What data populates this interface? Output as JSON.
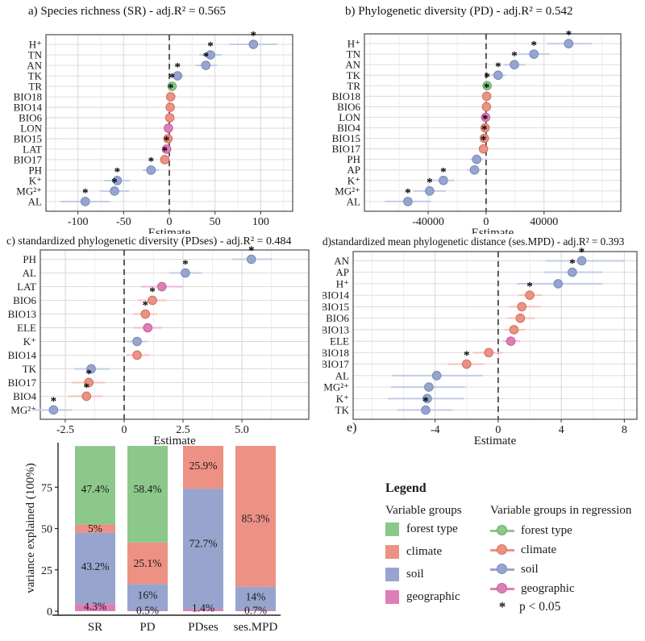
{
  "figure": {
    "panel_e_label": "e)"
  },
  "colors": {
    "forest_type": "#8cc88b",
    "climate": "#ec9184",
    "soil": "#97a5ce",
    "geographic": "#dd7eb7",
    "forest_type_light": "#bcdfbb",
    "climate_light": "#f5c3ba",
    "soil_light": "#c2cce5",
    "geographic_light": "#efb7d8",
    "forest_type_dark": "#66a968",
    "climate_dark": "#d0705f",
    "soil_dark": "#7589ba",
    "geographic_dark": "#c05f9c",
    "grid": "#d7d7d7",
    "grid_minor": "#ebebeb",
    "border": "#4a4a4a",
    "zero_line": "#333333",
    "text": "#1a1a1a"
  },
  "chart_data": [
    {
      "type": "scatter",
      "id": "a",
      "subtype": "forest-plot",
      "title": "a)  Species richness (SR) -  adj.R² = 0.565",
      "xlabel": "Estimate",
      "xlim": [
        -135,
        135
      ],
      "xticks": [
        {
          "v": -100,
          "t": "-100"
        },
        {
          "v": -50,
          "t": "-50"
        },
        {
          "v": 0,
          "t": "0"
        },
        {
          "v": 50,
          "t": "50"
        },
        {
          "v": 100,
          "t": "100"
        }
      ],
      "xminor": [
        -125,
        -75,
        -25,
        25,
        75,
        125
      ],
      "rows": [
        {
          "label": "H⁺",
          "group": "soil",
          "estimate": 92,
          "ci": [
            66,
            118
          ],
          "significant": true
        },
        {
          "label": "TN",
          "group": "soil",
          "estimate": 45,
          "ci": [
            33,
            57
          ],
          "significant": true
        },
        {
          "label": "AN",
          "group": "soil",
          "estimate": 40,
          "ci": [
            29,
            52
          ],
          "significant": true
        },
        {
          "label": "TK",
          "group": "soil",
          "estimate": 9,
          "ci": [
            3,
            15
          ],
          "significant": true
        },
        {
          "label": "TR",
          "group": "forest_type",
          "estimate": 3,
          "ci": [
            0,
            6
          ],
          "significant": true
        },
        {
          "label": "BIO18",
          "group": "climate",
          "estimate": 1.5,
          "ci": [
            -1,
            4
          ],
          "significant": true
        },
        {
          "label": "BIO14",
          "group": "climate",
          "estimate": 1,
          "ci": [
            -2,
            4
          ],
          "significant": false
        },
        {
          "label": "BIO6",
          "group": "climate",
          "estimate": 0.5,
          "ci": [
            -2.5,
            3.5
          ],
          "significant": false
        },
        {
          "label": "LON",
          "group": "geographic",
          "estimate": -1,
          "ci": [
            -4,
            2
          ],
          "significant": false
        },
        {
          "label": "BIO15",
          "group": "climate",
          "estimate": -1.5,
          "ci": [
            -4.5,
            1.5
          ],
          "significant": false
        },
        {
          "label": "LAT",
          "group": "geographic",
          "estimate": -3,
          "ci": [
            -6,
            0
          ],
          "significant": true
        },
        {
          "label": "BIO17",
          "group": "climate",
          "estimate": -5,
          "ci": [
            -9,
            -1
          ],
          "significant": true
        },
        {
          "label": "PH",
          "group": "soil",
          "estimate": -20,
          "ci": [
            -29,
            -11
          ],
          "significant": true
        },
        {
          "label": "K⁺",
          "group": "soil",
          "estimate": -57,
          "ci": [
            -71,
            -43
          ],
          "significant": true
        },
        {
          "label": "MG²⁺",
          "group": "soil",
          "estimate": -60,
          "ci": [
            -76,
            -44
          ],
          "significant": true
        },
        {
          "label": "AL",
          "group": "soil",
          "estimate": -92,
          "ci": [
            -119,
            -65
          ],
          "significant": true
        }
      ]
    },
    {
      "type": "scatter",
      "id": "b",
      "subtype": "forest-plot",
      "title": "b) Phylogenetic diversity (PD) -  adj.R² = 0.542",
      "xlabel": "Estimate",
      "xlim": [
        -84000,
        93000
      ],
      "xticks": [
        {
          "v": -40000,
          "t": "-40000"
        },
        {
          "v": 0,
          "t": "0"
        },
        {
          "v": 40000,
          "t": "40000"
        }
      ],
      "xminor": [
        -80000,
        -60000,
        -20000,
        20000,
        60000,
        80000
      ],
      "rows": [
        {
          "label": "H⁺",
          "group": "soil",
          "estimate": 57000,
          "ci": [
            42000,
            73000
          ],
          "significant": true
        },
        {
          "label": "TN",
          "group": "soil",
          "estimate": 33000,
          "ci": [
            22000,
            44000
          ],
          "significant": true
        },
        {
          "label": "AN",
          "group": "soil",
          "estimate": 19500,
          "ci": [
            12000,
            27000
          ],
          "significant": true
        },
        {
          "label": "TK",
          "group": "soil",
          "estimate": 8300,
          "ci": [
            3300,
            13300
          ],
          "significant": true
        },
        {
          "label": "TR",
          "group": "forest_type",
          "estimate": 700,
          "ci": [
            -400,
            1800
          ],
          "significant": true
        },
        {
          "label": "BIO18",
          "group": "climate",
          "estimate": 400,
          "ci": [
            -700,
            1500
          ],
          "significant": true
        },
        {
          "label": "BIO6",
          "group": "climate",
          "estimate": 250,
          "ci": [
            -900,
            1400
          ],
          "significant": false
        },
        {
          "label": "LON",
          "group": "geographic",
          "estimate": -300,
          "ci": [
            -1400,
            800
          ],
          "significant": false
        },
        {
          "label": "BIO4",
          "group": "climate",
          "estimate": -700,
          "ci": [
            -1800,
            400
          ],
          "significant": true
        },
        {
          "label": "BIO15",
          "group": "climate",
          "estimate": -1200,
          "ci": [
            -2400,
            0
          ],
          "significant": true
        },
        {
          "label": "BIO17",
          "group": "climate",
          "estimate": -1800,
          "ci": [
            -3100,
            -500
          ],
          "significant": true
        },
        {
          "label": "PH",
          "group": "soil",
          "estimate": -6500,
          "ci": [
            -11000,
            -2000
          ],
          "significant": false
        },
        {
          "label": "AP",
          "group": "soil",
          "estimate": -8000,
          "ci": [
            -13000,
            -3000
          ],
          "significant": false
        },
        {
          "label": "K⁺",
          "group": "soil",
          "estimate": -29500,
          "ci": [
            -37000,
            -22000
          ],
          "significant": true
        },
        {
          "label": "MG²⁺",
          "group": "soil",
          "estimate": -39000,
          "ci": [
            -50000,
            -28000
          ],
          "significant": true
        },
        {
          "label": "AL",
          "group": "soil",
          "estimate": -54000,
          "ci": [
            -70000,
            -38000
          ],
          "significant": true
        }
      ]
    },
    {
      "type": "scatter",
      "id": "c",
      "subtype": "forest-plot",
      "title": "c) standardized phylogenetic diversity (PDses) -  adj.R² = 0.484",
      "xlabel": "Estimate",
      "xlim": [
        -3.56,
        7.84
      ],
      "xticks": [
        {
          "v": -2.5,
          "t": "-2.5"
        },
        {
          "v": 0,
          "t": "0"
        },
        {
          "v": 2.5,
          "t": "2.5"
        },
        {
          "v": 5,
          "t": "5.0"
        }
      ],
      "xminor": [
        -1.25,
        1.25,
        3.75,
        6.25
      ],
      "rows": [
        {
          "label": "PH",
          "group": "soil",
          "estimate": 5.4,
          "ci": [
            4.6,
            6.3
          ],
          "significant": true
        },
        {
          "label": "AL",
          "group": "soil",
          "estimate": 2.6,
          "ci": [
            1.9,
            3.3
          ],
          "significant": true
        },
        {
          "label": "LAT",
          "group": "geographic",
          "estimate": 1.6,
          "ci": [
            0.7,
            2.5
          ],
          "significant": false
        },
        {
          "label": "BIO6",
          "group": "climate",
          "estimate": 1.2,
          "ci": [
            0.6,
            1.8
          ],
          "significant": true
        },
        {
          "label": "BIO13",
          "group": "climate",
          "estimate": 0.9,
          "ci": [
            0.4,
            1.4
          ],
          "significant": true
        },
        {
          "label": "ELE",
          "group": "geographic",
          "estimate": 1.0,
          "ci": [
            0.4,
            1.6
          ],
          "significant": false
        },
        {
          "label": "K⁺",
          "group": "soil",
          "estimate": 0.55,
          "ci": [
            0.1,
            1.0
          ],
          "significant": false
        },
        {
          "label": "BIO14",
          "group": "climate",
          "estimate": 0.55,
          "ci": [
            0.1,
            1.1
          ],
          "significant": false
        },
        {
          "label": "TK",
          "group": "soil",
          "estimate": -1.4,
          "ci": [
            -2.1,
            -0.6
          ],
          "significant": false
        },
        {
          "label": "BIO17",
          "group": "climate",
          "estimate": -1.5,
          "ci": [
            -2.2,
            -0.8
          ],
          "significant": true
        },
        {
          "label": "BIO4",
          "group": "climate",
          "estimate": -1.6,
          "ci": [
            -2.4,
            -0.9
          ],
          "significant": true
        },
        {
          "label": "MG²⁺",
          "group": "soil",
          "estimate": -3.0,
          "ci": [
            -3.9,
            -2.2
          ],
          "significant": true
        }
      ]
    },
    {
      "type": "scatter",
      "id": "d",
      "subtype": "forest-plot",
      "title": "d)standardized mean phylogenetic distance (ses.MPD) -  adj.R² = 0.393",
      "xlabel": "Estimate",
      "xlim": [
        -9.2,
        8.8
      ],
      "xticks": [
        {
          "v": -4,
          "t": "-4"
        },
        {
          "v": 0,
          "t": "0"
        },
        {
          "v": 4,
          "t": "4"
        },
        {
          "v": 8,
          "t": "8"
        }
      ],
      "xminor": [
        -8,
        -6,
        -2,
        2,
        6
      ],
      "rows": [
        {
          "label": "AN",
          "group": "soil",
          "estimate": 5.3,
          "ci": [
            3.0,
            8.0
          ],
          "significant": true
        },
        {
          "label": "AP",
          "group": "soil",
          "estimate": 4.7,
          "ci": [
            2.9,
            6.6
          ],
          "significant": true
        },
        {
          "label": "H⁺",
          "group": "soil",
          "estimate": 3.8,
          "ci": [
            1.2,
            6.6
          ],
          "significant": false
        },
        {
          "label": "BIO14",
          "group": "climate",
          "estimate": 2.0,
          "ci": [
            1.3,
            2.8
          ],
          "significant": true
        },
        {
          "label": "BIO15",
          "group": "climate",
          "estimate": 1.5,
          "ci": [
            0.7,
            2.7
          ],
          "significant": false
        },
        {
          "label": "BIO6",
          "group": "climate",
          "estimate": 1.4,
          "ci": [
            0.6,
            2.3
          ],
          "significant": false
        },
        {
          "label": "BIO13",
          "group": "climate",
          "estimate": 1.0,
          "ci": [
            0.4,
            1.7
          ],
          "significant": false
        },
        {
          "label": "ELE",
          "group": "geographic",
          "estimate": 0.8,
          "ci": [
            0.3,
            1.4
          ],
          "significant": false
        },
        {
          "label": "BIO18",
          "group": "climate",
          "estimate": -0.6,
          "ci": [
            -1.6,
            0.3
          ],
          "significant": false
        },
        {
          "label": "BIO17",
          "group": "climate",
          "estimate": -2.0,
          "ci": [
            -3.2,
            -0.9
          ],
          "significant": true
        },
        {
          "label": "AL",
          "group": "soil",
          "estimate": -3.9,
          "ci": [
            -6.7,
            -1.0
          ],
          "significant": false
        },
        {
          "label": "MG²⁺",
          "group": "soil",
          "estimate": -4.4,
          "ci": [
            -6.8,
            -2.1
          ],
          "significant": false
        },
        {
          "label": "K⁺",
          "group": "soil",
          "estimate": -4.5,
          "ci": [
            -7.0,
            -2.2
          ],
          "significant": false
        },
        {
          "label": "TK",
          "group": "soil",
          "estimate": -4.6,
          "ci": [
            -6.4,
            -2.9
          ],
          "significant": true
        }
      ]
    },
    {
      "type": "bar",
      "id": "e",
      "stacked": true,
      "categories": [
        "SR",
        "PD",
        "PDses",
        "ses.MPD"
      ],
      "ylabel": "variance explained (100%)",
      "ylim": [
        0,
        100
      ],
      "yticks": [
        {
          "v": 0,
          "t": "0"
        },
        {
          "v": 25,
          "t": "25"
        },
        {
          "v": 50,
          "t": "50"
        },
        {
          "v": 75,
          "t": "75"
        }
      ],
      "series": [
        {
          "name": "geographic",
          "values": [
            4.3,
            0.5,
            1.4,
            0.7
          ],
          "labels": [
            "4.3%",
            "0.5%",
            "1.4%",
            "0.7%"
          ],
          "label_y": [
            3,
            0.5,
            2,
            0.5
          ]
        },
        {
          "name": "soil",
          "values": [
            43.2,
            16,
            72.7,
            14
          ],
          "labels": [
            "43.2%",
            "16%",
            "72.7%",
            "14%"
          ],
          "label_y": [
            27,
            9.8,
            41,
            8.8
          ]
        },
        {
          "name": "climate",
          "values": [
            5,
            25.1,
            25.9,
            85.3
          ],
          "labels": [
            "5%",
            "25.1%",
            "25.9%",
            "85.3%"
          ],
          "label_y": [
            50,
            29,
            88,
            56
          ]
        },
        {
          "name": "forest_type",
          "values": [
            47.4,
            58.4,
            0,
            0
          ],
          "labels": [
            "47.4%",
            "58.4%",
            "",
            ""
          ],
          "label_y": [
            74,
            74,
            0,
            0
          ]
        }
      ]
    }
  ],
  "legend": {
    "title": "Legend",
    "groups_title": "Variable groups",
    "regression_title": "Variable groups in regression",
    "items": [
      {
        "label": "forest type",
        "group": "forest_type"
      },
      {
        "label": "climate",
        "group": "climate"
      },
      {
        "label": "soil",
        "group": "soil"
      },
      {
        "label": "geographic",
        "group": "geographic"
      }
    ],
    "significance": {
      "symbol": "*",
      "label": "p < 0.05"
    }
  }
}
